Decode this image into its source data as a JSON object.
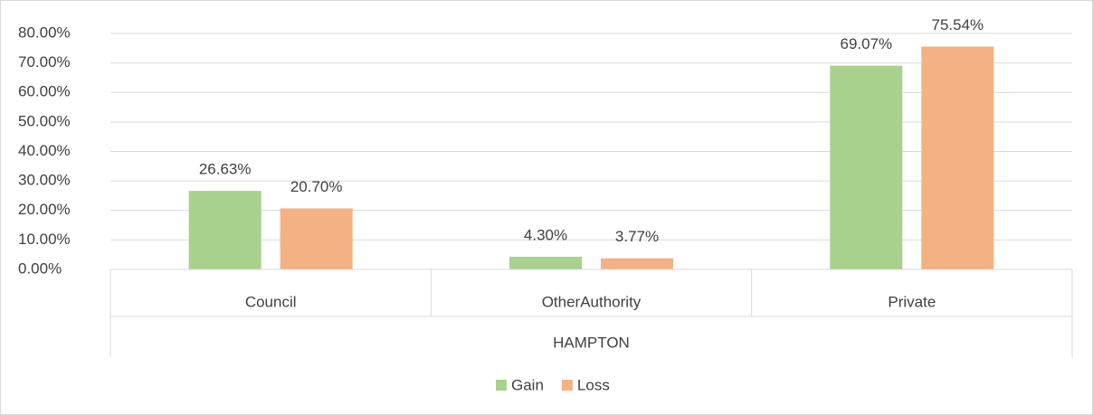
{
  "chart_data": {
    "type": "bar",
    "categories": [
      "Council",
      "OtherAuthority",
      "Private"
    ],
    "group_label": "HAMPTON",
    "series": [
      {
        "name": "Gain",
        "color": "#a9d18e",
        "values": [
          26.63,
          4.3,
          69.07
        ],
        "value_labels": [
          "26.63%",
          "4.30%",
          "69.07%"
        ]
      },
      {
        "name": "Loss",
        "color": "#f4b183",
        "values": [
          20.7,
          3.77,
          75.54
        ],
        "value_labels": [
          "20.70%",
          "3.77%",
          "75.54%"
        ]
      }
    ],
    "ylim": [
      0,
      80
    ],
    "yticks": [
      {
        "value": 0,
        "label": "0.00%"
      },
      {
        "value": 10,
        "label": "10.00%"
      },
      {
        "value": 20,
        "label": "20.00%"
      },
      {
        "value": 30,
        "label": "30.00%"
      },
      {
        "value": 40,
        "label": "40.00%"
      },
      {
        "value": 50,
        "label": "50.00%"
      },
      {
        "value": 60,
        "label": "60.00%"
      },
      {
        "value": 70,
        "label": "70.00%"
      },
      {
        "value": 80,
        "label": "80.00%"
      }
    ],
    "grid": true,
    "legend": "bottom"
  }
}
